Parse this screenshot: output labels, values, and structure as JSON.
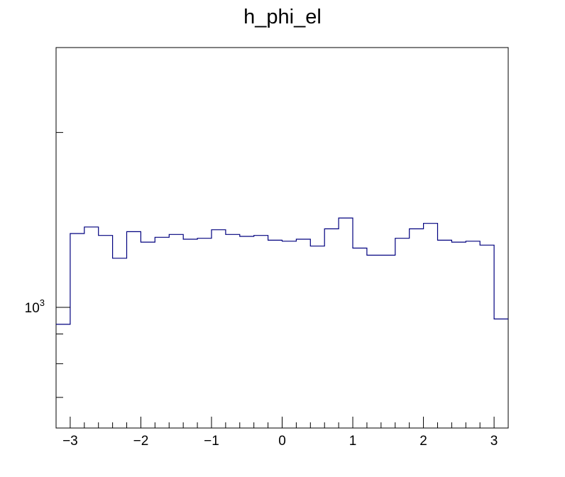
{
  "chart_data": {
    "type": "histogram",
    "title": "h_phi_el",
    "xlabel": "",
    "ylabel": "",
    "x_scale": "linear",
    "y_scale": "log",
    "xlim": [
      -3.2,
      3.2
    ],
    "ylim": [
      620,
      2800
    ],
    "bin_edges": [
      -3.2,
      -3.0,
      -2.8,
      -2.6,
      -2.4,
      -2.2,
      -2.0,
      -1.8,
      -1.6,
      -1.4,
      -1.2,
      -1.0,
      -0.8,
      -0.6,
      -0.4,
      -0.2,
      0.0,
      0.2,
      0.4,
      0.6,
      0.8,
      1.0,
      1.2,
      1.4,
      1.6,
      1.8,
      2.0,
      2.2,
      2.4,
      2.6,
      2.8,
      3.0,
      3.2
    ],
    "values": [
      935,
      1340,
      1375,
      1330,
      1215,
      1350,
      1295,
      1320,
      1335,
      1310,
      1315,
      1360,
      1335,
      1325,
      1330,
      1305,
      1300,
      1310,
      1275,
      1365,
      1425,
      1265,
      1230,
      1230,
      1315,
      1365,
      1395,
      1305,
      1295,
      1300,
      1280,
      955
    ],
    "x_ticks": [
      {
        "value": -3,
        "label": "−3"
      },
      {
        "value": -2,
        "label": "−2"
      },
      {
        "value": -1,
        "label": "−1"
      },
      {
        "value": 0,
        "label": "0"
      },
      {
        "value": 1,
        "label": "1"
      },
      {
        "value": 2,
        "label": "2"
      },
      {
        "value": 3,
        "label": "3"
      }
    ],
    "y_major_ticks": [
      {
        "value": 1000,
        "base": "10",
        "exponent": "3"
      }
    ],
    "y_minor_ticks": [
      700,
      800,
      900,
      2000
    ],
    "line_color": "#00007f",
    "grid": false,
    "legend": "none"
  }
}
